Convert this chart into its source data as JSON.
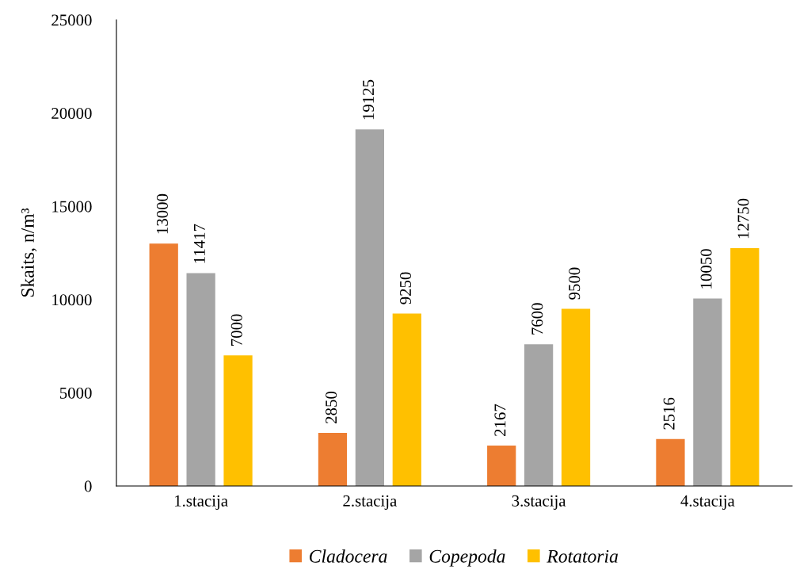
{
  "chart_data": {
    "type": "bar",
    "ylabel": "Skaits, n/m³",
    "categories": [
      "1.stacija",
      "2.stacija",
      "3.stacija",
      "4.stacija"
    ],
    "series": [
      {
        "name": "Cladocera",
        "color": "#ed7d31",
        "values": [
          13000,
          2850,
          2167,
          2516
        ]
      },
      {
        "name": "Copepoda",
        "color": "#a5a5a5",
        "values": [
          11417,
          19125,
          7600,
          10050
        ]
      },
      {
        "name": "Rotatoria",
        "color": "#ffc000",
        "values": [
          7000,
          9250,
          9500,
          12750
        ]
      }
    ],
    "ylim": [
      0,
      25000
    ],
    "yticks": [
      0,
      5000,
      10000,
      15000,
      20000,
      25000
    ],
    "grid": false,
    "legend": "bottom",
    "data_labels": true
  }
}
